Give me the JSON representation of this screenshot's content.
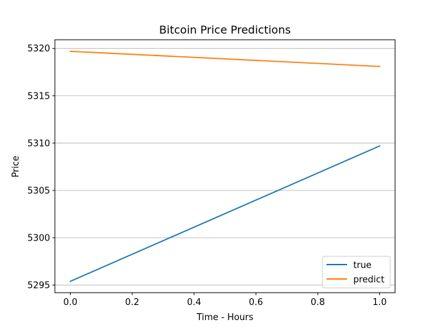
{
  "chart_data": {
    "type": "line",
    "title": "Bitcoin Price Predictions",
    "xlabel": "Time - Hours",
    "ylabel": "Price",
    "x": [
      0.0,
      1.0
    ],
    "series": [
      {
        "name": "true",
        "color": "#1f77b4",
        "values": [
          5295.4,
          5309.7
        ]
      },
      {
        "name": "predict",
        "color": "#ff7f0e",
        "values": [
          5319.7,
          5318.1
        ]
      }
    ],
    "xlim": [
      -0.05,
      1.05
    ],
    "ylim": [
      5294.2,
      5320.92
    ],
    "xticks": [
      "0.0",
      "0.2",
      "0.4",
      "0.6",
      "0.8",
      "1.0"
    ],
    "yticks": [
      "5295",
      "5300",
      "5305",
      "5310",
      "5315",
      "5320"
    ],
    "grid": "horizontal",
    "legend_position": "lower-right"
  }
}
